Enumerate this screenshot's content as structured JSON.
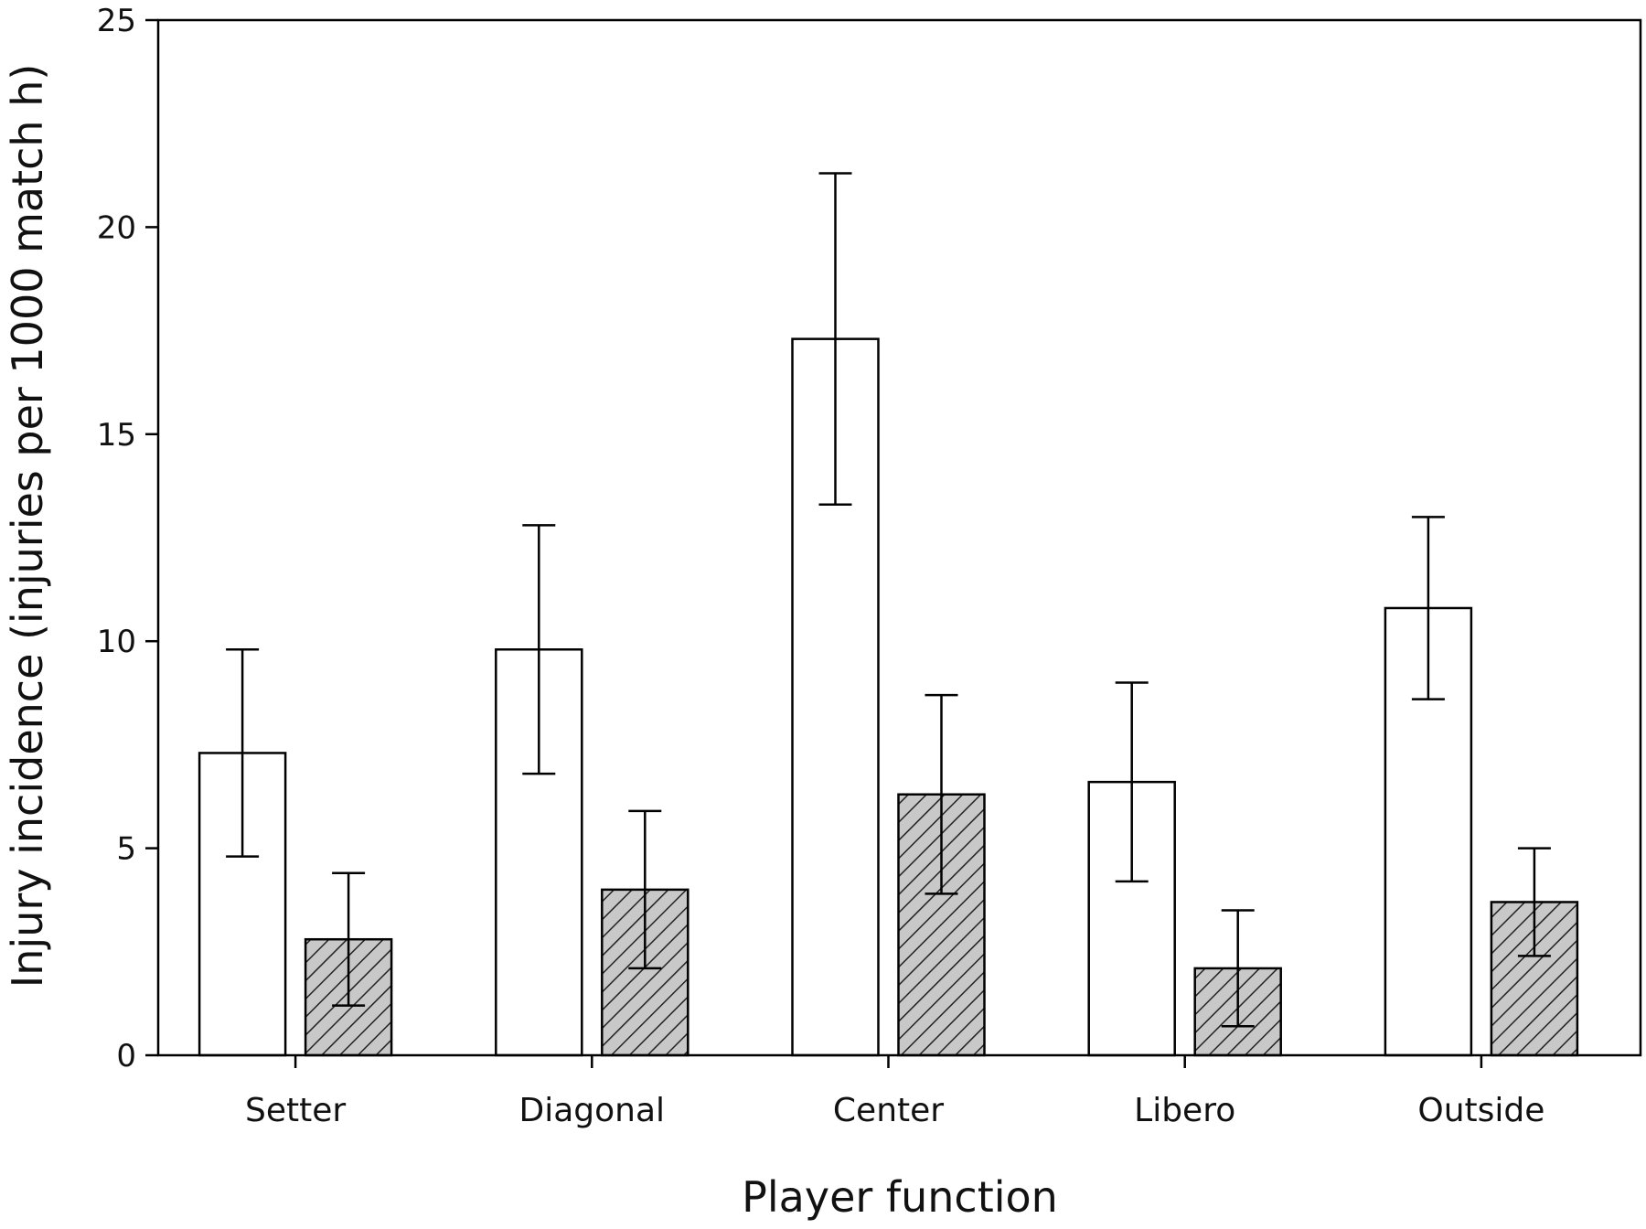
{
  "chart_data": {
    "type": "bar",
    "title": "",
    "xlabel": "Player function",
    "ylabel": "Injury incidence (injuries per 1000 match h)",
    "ylim": [
      0,
      25
    ],
    "yticks": [
      0,
      5,
      10,
      15,
      20,
      25
    ],
    "grid": false,
    "legend": "none",
    "categories": [
      "Setter",
      "Diagonal",
      "Center",
      "Libero",
      "Outside"
    ],
    "series": [
      {
        "fill": "#ffffff",
        "pattern": "none",
        "values": [
          7.3,
          9.8,
          17.3,
          6.6,
          10.8
        ],
        "error_low": [
          4.8,
          6.8,
          13.3,
          4.2,
          8.6
        ],
        "error_high": [
          9.8,
          12.8,
          21.3,
          9.0,
          13.0
        ]
      },
      {
        "fill": "#c8c8c8",
        "pattern": "diagonal-hatch",
        "values": [
          2.8,
          4.0,
          6.3,
          2.1,
          3.7
        ],
        "error_low": [
          1.2,
          2.1,
          3.9,
          0.7,
          2.4
        ],
        "error_high": [
          4.4,
          5.9,
          8.7,
          3.5,
          5.0
        ]
      }
    ]
  }
}
